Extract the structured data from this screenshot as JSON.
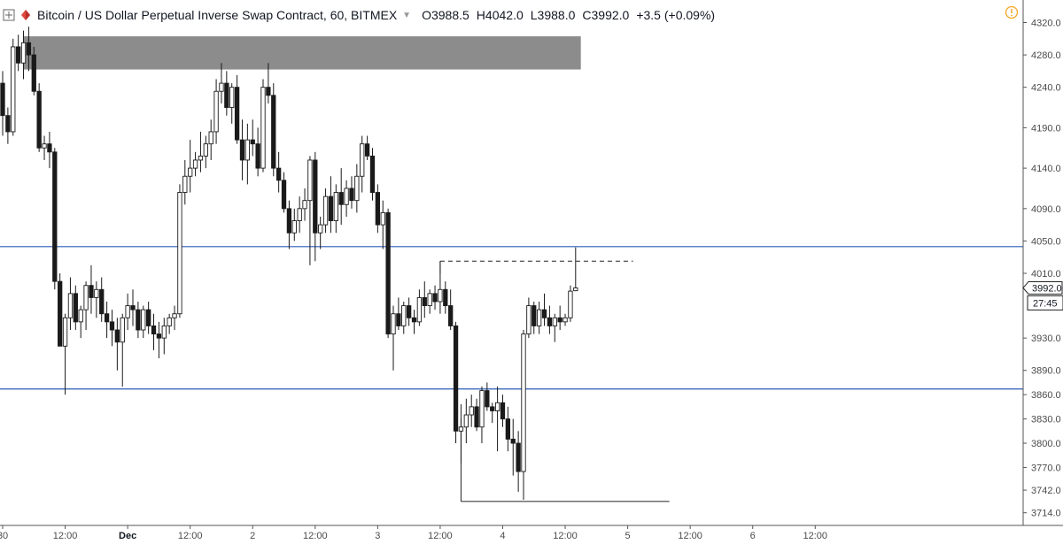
{
  "header": {
    "title": "Bitcoin / US Dollar Perpetual Inverse Swap Contract, 60, BITMEX",
    "open_label": "O",
    "open": "3988.5",
    "high_label": "H",
    "high": "4042.0",
    "low_label": "L",
    "low": "3988.0",
    "close_label": "C",
    "close": "3992.0",
    "change": "+3.5 (+0.09%)"
  },
  "badges": {
    "last_price": "3992.0",
    "countdown": "27:45"
  },
  "colors": {
    "up_body": "#ffffff",
    "down_body": "#1a1a1a",
    "candle_border": "#1a1a1a",
    "line": "#2a5bb8",
    "zone": "#7f7f7f",
    "grid_axis": "#555555",
    "alert": "#f5a623"
  },
  "icons": {
    "expand": "expand-icon",
    "brand": "brand-logo-icon",
    "alert": "alert-icon"
  },
  "chart_data": {
    "type": "candlestick",
    "title": "Bitcoin / US Dollar Perpetual Inverse Swap Contract, 60, BITMEX",
    "x_ticks": [
      {
        "label": "30",
        "idx": 0,
        "bold": false
      },
      {
        "label": "12:00",
        "idx": 12,
        "bold": false
      },
      {
        "label": "Dec",
        "idx": 24,
        "bold": true
      },
      {
        "label": "12:00",
        "idx": 36,
        "bold": false
      },
      {
        "label": "2",
        "idx": 48,
        "bold": false
      },
      {
        "label": "12:00",
        "idx": 60,
        "bold": false
      },
      {
        "label": "3",
        "idx": 72,
        "bold": false
      },
      {
        "label": "12:00",
        "idx": 84,
        "bold": false
      },
      {
        "label": "4",
        "idx": 96,
        "bold": false
      },
      {
        "label": "12:00",
        "idx": 108,
        "bold": false
      },
      {
        "label": "5",
        "idx": 120,
        "bold": false
      },
      {
        "label": "12:00",
        "idx": 132,
        "bold": false
      },
      {
        "label": "6",
        "idx": 144,
        "bold": false
      },
      {
        "label": "12:00",
        "idx": 156,
        "bold": false
      }
    ],
    "y_ticks": [
      "4320.0",
      "4280.0",
      "4240.0",
      "4190.0",
      "4140.0",
      "4090.0",
      "4050.0",
      "4010.0",
      "3930.0",
      "3890.0",
      "3860.0",
      "3830.0",
      "3800.0",
      "3770.0",
      "3742.0",
      "3714.0"
    ],
    "ylim": [
      3700,
      4335
    ],
    "horizontal_lines": [
      4043,
      3867
    ],
    "zone": {
      "from_idx": 4,
      "to_idx": 111,
      "low": 4262,
      "high": 4303
    },
    "dashed_line": {
      "from_idx": 84,
      "to_idx": 121,
      "price": 4025
    },
    "support_line": {
      "from_idx": 88,
      "to_idx": 128,
      "price": 3728
    },
    "candles": [
      [
        4245,
        4260,
        4180,
        4205
      ],
      [
        4205,
        4215,
        4170,
        4185
      ],
      [
        4185,
        4300,
        4180,
        4290
      ],
      [
        4290,
        4305,
        4260,
        4270
      ],
      [
        4270,
        4310,
        4250,
        4295
      ],
      [
        4295,
        4315,
        4260,
        4280
      ],
      [
        4280,
        4290,
        4230,
        4235
      ],
      [
        4235,
        4245,
        4160,
        4165
      ],
      [
        4165,
        4180,
        4150,
        4170
      ],
      [
        4170,
        4185,
        4140,
        4160
      ],
      [
        4160,
        4165,
        3990,
        4000
      ],
      [
        4000,
        4010,
        3920,
        3920
      ],
      [
        3920,
        3960,
        3860,
        3955
      ],
      [
        3955,
        4005,
        3940,
        3985
      ],
      [
        3985,
        3995,
        3940,
        3950
      ],
      [
        3950,
        3970,
        3930,
        3965
      ],
      [
        3965,
        4000,
        3940,
        3995
      ],
      [
        3995,
        4020,
        3960,
        3980
      ],
      [
        3980,
        4000,
        3955,
        3990
      ],
      [
        3990,
        4005,
        3950,
        3960
      ],
      [
        3960,
        3975,
        3930,
        3950
      ],
      [
        3950,
        3965,
        3920,
        3940
      ],
      [
        3940,
        3955,
        3890,
        3925
      ],
      [
        3925,
        3960,
        3870,
        3955
      ],
      [
        3955,
        3985,
        3940,
        3970
      ],
      [
        3970,
        3990,
        3945,
        3965
      ],
      [
        3965,
        3975,
        3930,
        3940
      ],
      [
        3940,
        3970,
        3930,
        3965
      ],
      [
        3965,
        3975,
        3935,
        3945
      ],
      [
        3945,
        3960,
        3915,
        3935
      ],
      [
        3935,
        3950,
        3905,
        3930
      ],
      [
        3930,
        3955,
        3910,
        3945
      ],
      [
        3945,
        3960,
        3935,
        3955
      ],
      [
        3955,
        3970,
        3940,
        3960
      ],
      [
        3960,
        4120,
        3955,
        4110
      ],
      [
        4110,
        4150,
        4095,
        4130
      ],
      [
        4130,
        4175,
        4110,
        4140
      ],
      [
        4140,
        4160,
        4130,
        4150
      ],
      [
        4150,
        4185,
        4135,
        4155
      ],
      [
        4155,
        4180,
        4140,
        4170
      ],
      [
        4170,
        4200,
        4150,
        4185
      ],
      [
        4185,
        4250,
        4170,
        4235
      ],
      [
        4235,
        4270,
        4220,
        4245
      ],
      [
        4245,
        4260,
        4205,
        4215
      ],
      [
        4215,
        4245,
        4195,
        4240
      ],
      [
        4240,
        4255,
        4170,
        4175
      ],
      [
        4175,
        4200,
        4125,
        4150
      ],
      [
        4150,
        4195,
        4120,
        4175
      ],
      [
        4175,
        4200,
        4155,
        4170
      ],
      [
        4170,
        4190,
        4130,
        4140
      ],
      [
        4140,
        4250,
        4135,
        4240
      ],
      [
        4240,
        4270,
        4220,
        4230
      ],
      [
        4230,
        4245,
        4130,
        4140
      ],
      [
        4140,
        4160,
        4110,
        4125
      ],
      [
        4125,
        4135,
        4085,
        4090
      ],
      [
        4090,
        4100,
        4040,
        4060
      ],
      [
        4060,
        4090,
        4050,
        4075
      ],
      [
        4075,
        4105,
        4060,
        4090
      ],
      [
        4090,
        4115,
        4075,
        4100
      ],
      [
        4100,
        4155,
        4020,
        4150
      ],
      [
        4150,
        4160,
        4025,
        4060
      ],
      [
        4060,
        4080,
        4040,
        4070
      ],
      [
        4070,
        4115,
        4060,
        4105
      ],
      [
        4105,
        4130,
        4060,
        4075
      ],
      [
        4075,
        4120,
        4060,
        4110
      ],
      [
        4110,
        4140,
        4070,
        4095
      ],
      [
        4095,
        4125,
        4080,
        4115
      ],
      [
        4115,
        4130,
        4090,
        4100
      ],
      [
        4100,
        4145,
        4085,
        4130
      ],
      [
        4130,
        4180,
        4110,
        4170
      ],
      [
        4170,
        4180,
        4150,
        4155
      ],
      [
        4155,
        4165,
        4100,
        4110
      ],
      [
        4110,
        4120,
        4060,
        4070
      ],
      [
        4070,
        4100,
        4040,
        4085
      ],
      [
        4085,
        4090,
        3930,
        3935
      ],
      [
        3935,
        3970,
        3890,
        3960
      ],
      [
        3960,
        3980,
        3940,
        3945
      ],
      [
        3945,
        3975,
        3935,
        3970
      ],
      [
        3970,
        3980,
        3945,
        3955
      ],
      [
        3955,
        3965,
        3935,
        3950
      ],
      [
        3950,
        3990,
        3945,
        3980
      ],
      [
        3980,
        4000,
        3955,
        3970
      ],
      [
        3970,
        3990,
        3960,
        3985
      ],
      [
        3985,
        3995,
        3965,
        3975
      ],
      [
        3975,
        4025,
        3960,
        3990
      ],
      [
        3990,
        4000,
        3960,
        3970
      ],
      [
        3970,
        3990,
        3940,
        3945
      ],
      [
        3945,
        3950,
        3800,
        3815
      ],
      [
        3815,
        3830,
        3775,
        3820
      ],
      [
        3820,
        3855,
        3800,
        3835
      ],
      [
        3835,
        3860,
        3820,
        3845
      ],
      [
        3845,
        3855,
        3815,
        3820
      ],
      [
        3820,
        3870,
        3800,
        3865
      ],
      [
        3865,
        3875,
        3840,
        3845
      ],
      [
        3845,
        3850,
        3825,
        3840
      ],
      [
        3840,
        3870,
        3790,
        3850
      ],
      [
        3850,
        3860,
        3820,
        3830
      ],
      [
        3830,
        3845,
        3790,
        3805
      ],
      [
        3805,
        3830,
        3760,
        3800
      ],
      [
        3800,
        3815,
        3740,
        3765
      ],
      [
        3765,
        3940,
        3730,
        3935
      ],
      [
        3935,
        3980,
        3930,
        3970
      ],
      [
        3970,
        3975,
        3935,
        3945
      ],
      [
        3945,
        3975,
        3935,
        3965
      ],
      [
        3965,
        3985,
        3945,
        3955
      ],
      [
        3955,
        3970,
        3935,
        3945
      ],
      [
        3945,
        3960,
        3925,
        3955
      ],
      [
        3955,
        3970,
        3940,
        3950
      ],
      [
        3950,
        3960,
        3945,
        3955
      ],
      [
        3955,
        3995,
        3950,
        3988
      ],
      [
        3988.5,
        4042,
        3988,
        3992
      ]
    ]
  }
}
